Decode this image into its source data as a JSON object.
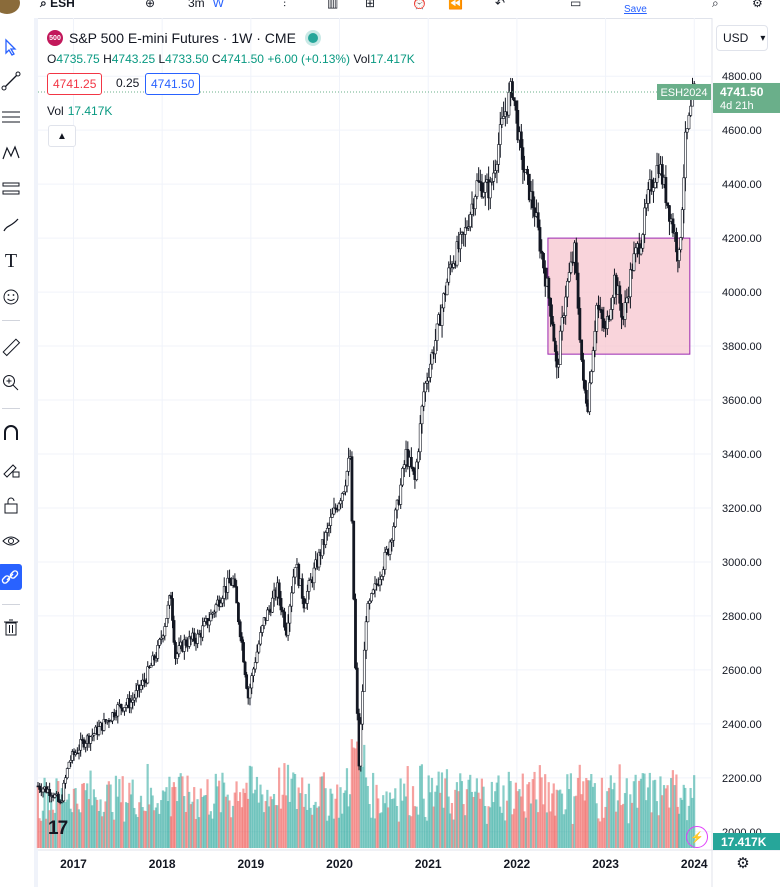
{
  "toolbar": {
    "symbol": "ESH",
    "interval": "3m",
    "interval_alt": "W",
    "save_label": "Save"
  },
  "legend": {
    "badge": "500",
    "title": "S&P 500 E-mini Futures · 1W · CME",
    "open_label": "O",
    "open": "4735.75",
    "high_label": "H",
    "high": "4743.25",
    "low_label": "L",
    "low": "4733.50",
    "close_label": "C",
    "close": "4741.50",
    "change": "+6.00 (+0.13%)",
    "vol_label": "Vol",
    "vol": "17.417K"
  },
  "trade": {
    "sell": "4741.25",
    "spread": "0.25",
    "buy": "4741.50"
  },
  "volume_pane": {
    "label": "Vol",
    "value": "17.417K",
    "axis_tag": "17.417K"
  },
  "currency": {
    "label": "USD",
    "chevron": "▾"
  },
  "logo": "17",
  "price_tags": {
    "symbol_tag": "ESH2024",
    "last_price": "4741.50",
    "countdown": "4d 21h"
  },
  "colors": {
    "up": "#26a69a",
    "down": "#ef5350",
    "candle": "#131722",
    "rect_fill": "#f7c6cf",
    "rect_border": "#9c27b0",
    "tag_bg": "#6aaf8a",
    "grid": "#f0f3fa"
  },
  "chart_data": {
    "type": "candlestick",
    "title": "S&P 500 E-mini Futures · 1W · CME",
    "x_ticks": [
      "2017",
      "2018",
      "2019",
      "2020",
      "2021",
      "2022",
      "2023",
      "2024"
    ],
    "y_ticks": [
      "4800.00",
      "4600.00",
      "4400.00",
      "4200.00",
      "4000.00",
      "3800.00",
      "3600.00",
      "3400.00",
      "3200.00",
      "3000.00",
      "2800.00",
      "2600.00",
      "2400.00",
      "2200.00",
      "2000.00"
    ],
    "ylim": [
      1940,
      4860
    ],
    "xlim": [
      2016.6,
      2024.2
    ],
    "last_price": 4741.5,
    "series": [
      {
        "name": "ESH2024",
        "x": [
          2016.6,
          2016.75,
          2016.85,
          2016.95,
          2017.1,
          2017.25,
          2017.4,
          2017.5,
          2017.65,
          2017.8,
          2017.95,
          2018.05,
          2018.1,
          2018.15,
          2018.25,
          2018.4,
          2018.55,
          2018.7,
          2018.8,
          2018.9,
          2018.97,
          2019.05,
          2019.15,
          2019.3,
          2019.4,
          2019.5,
          2019.6,
          2019.75,
          2019.9,
          2020.05,
          2020.12,
          2020.18,
          2020.22,
          2020.3,
          2020.4,
          2020.55,
          2020.65,
          2020.75,
          2020.85,
          2020.95,
          2021.1,
          2021.25,
          2021.4,
          2021.55,
          2021.7,
          2021.85,
          2021.95,
          2022.05,
          2022.12,
          2022.2,
          2022.3,
          2022.4,
          2022.45,
          2022.55,
          2022.65,
          2022.75,
          2022.8,
          2022.9,
          2023.0,
          2023.1,
          2023.2,
          2023.3,
          2023.4,
          2023.5,
          2023.6,
          2023.7,
          2023.8,
          2023.83,
          2023.9,
          2024.0
        ],
        "close": [
          2170,
          2150,
          2100,
          2260,
          2330,
          2370,
          2420,
          2460,
          2480,
          2560,
          2670,
          2800,
          2880,
          2650,
          2700,
          2720,
          2800,
          2900,
          2930,
          2700,
          2500,
          2640,
          2780,
          2900,
          2750,
          3000,
          2850,
          3000,
          3150,
          3280,
          3390,
          2600,
          2250,
          2800,
          2900,
          3050,
          3200,
          3400,
          3300,
          3630,
          3850,
          4100,
          4200,
          4400,
          4380,
          4650,
          4760,
          4500,
          4400,
          4300,
          4100,
          3900,
          3700,
          4000,
          4150,
          3650,
          3590,
          3950,
          3850,
          4050,
          3900,
          4100,
          4200,
          4380,
          4480,
          4330,
          4180,
          4120,
          4550,
          4741.5
        ]
      }
    ],
    "volume": {
      "label": "Vol",
      "last": "17.417K"
    },
    "annotations": [
      {
        "type": "rectangle",
        "x0": 2022.35,
        "x1": 2023.95,
        "y0": 3770,
        "y1": 4200
      }
    ]
  }
}
